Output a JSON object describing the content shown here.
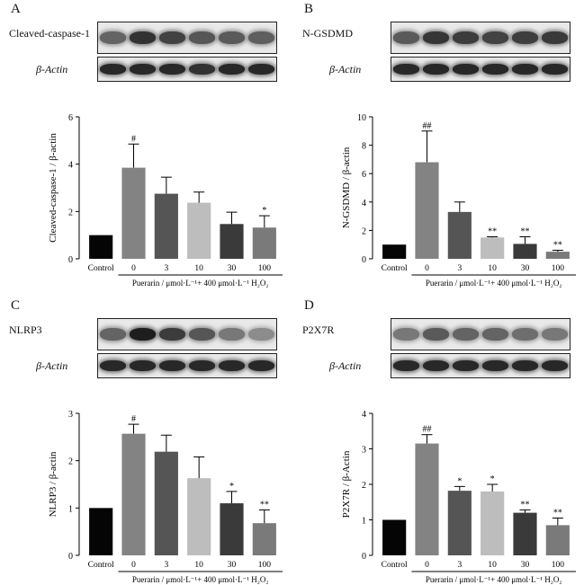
{
  "categories": [
    "Control",
    "0",
    "3",
    "10",
    "30",
    "100"
  ],
  "bracket_label": "Puerarin / μmol·L⁻¹+ 400 μmol·L⁻¹ H₂O₂",
  "actin_label": "β-Actin",
  "colors": {
    "bars": [
      "#050505",
      "#838383",
      "#555555",
      "#bdbdbd",
      "#3a3a3a",
      "#7a7a7a"
    ]
  },
  "blots": [
    {
      "main_intensity": [
        0.55,
        0.8,
        0.72,
        0.62,
        0.6,
        0.58
      ],
      "actin_intensity": [
        0.85,
        0.85,
        0.85,
        0.8,
        0.85,
        0.85
      ]
    },
    {
      "main_intensity": [
        0.6,
        0.78,
        0.75,
        0.72,
        0.74,
        0.76
      ],
      "actin_intensity": [
        0.85,
        0.85,
        0.85,
        0.85,
        0.85,
        0.85
      ]
    },
    {
      "main_intensity": [
        0.55,
        0.9,
        0.75,
        0.62,
        0.45,
        0.35
      ],
      "actin_intensity": [
        0.85,
        0.85,
        0.85,
        0.85,
        0.85,
        0.85
      ]
    },
    {
      "main_intensity": [
        0.45,
        0.6,
        0.55,
        0.55,
        0.5,
        0.45
      ],
      "actin_intensity": [
        0.85,
        0.85,
        0.85,
        0.85,
        0.85,
        0.85
      ]
    }
  ],
  "chart_data": [
    {
      "type": "bar",
      "panel_label": "A",
      "blot_label": "Cleaved-caspase-1",
      "ylabel": "Cleaved-caspase-1 / β-actin",
      "categories": [
        "Control",
        "0",
        "3",
        "10",
        "30",
        "100"
      ],
      "values": [
        1.0,
        3.85,
        2.75,
        2.37,
        1.47,
        1.32
      ],
      "errors": [
        0,
        1.0,
        0.7,
        0.45,
        0.5,
        0.5
      ],
      "significance": [
        "",
        "#",
        "",
        "",
        "",
        "*"
      ],
      "ylim": [
        0,
        6
      ],
      "yticks": [
        0,
        2,
        4,
        6
      ],
      "ytick_labels": [
        "0",
        "2",
        "4",
        "6"
      ]
    },
    {
      "type": "bar",
      "panel_label": "B",
      "blot_label": "N-GSDMD",
      "ylabel": "N-GSDMD / β-actin",
      "categories": [
        "Control",
        "0",
        "3",
        "10",
        "30",
        "100"
      ],
      "values": [
        1.0,
        6.8,
        3.3,
        1.5,
        1.05,
        0.5
      ],
      "errors": [
        0,
        2.2,
        0.7,
        0.05,
        0.5,
        0.1
      ],
      "significance": [
        "",
        "##",
        "",
        "**",
        "**",
        "**"
      ],
      "ylim": [
        0,
        10
      ],
      "yticks": [
        0,
        2,
        4,
        6,
        8,
        10
      ],
      "ytick_labels": [
        "0",
        "2",
        "4",
        "6",
        "8",
        "10"
      ]
    },
    {
      "type": "bar",
      "panel_label": "C",
      "blot_label": "NLRP3",
      "ylabel": "NLRP3 / β-actin",
      "categories": [
        "Control",
        "0",
        "3",
        "10",
        "30",
        "100"
      ],
      "values": [
        1.0,
        2.57,
        2.19,
        1.63,
        1.1,
        0.68
      ],
      "errors": [
        0,
        0.2,
        0.35,
        0.45,
        0.25,
        0.28
      ],
      "significance": [
        "",
        "#",
        "",
        "",
        "*",
        "**"
      ],
      "ylim": [
        0,
        3
      ],
      "yticks": [
        0,
        1,
        2,
        3
      ],
      "ytick_labels": [
        "0",
        "1",
        "2",
        "3"
      ]
    },
    {
      "type": "bar",
      "panel_label": "D",
      "blot_label": "P2X7R",
      "ylabel": "P2X7R / β-Actin",
      "categories": [
        "Control",
        "0",
        "3",
        "10",
        "30",
        "100"
      ],
      "values": [
        1.0,
        3.15,
        1.82,
        1.8,
        1.2,
        0.85
      ],
      "errors": [
        0,
        0.25,
        0.12,
        0.2,
        0.08,
        0.2
      ],
      "significance": [
        "",
        "##",
        "*",
        "*",
        "**",
        "**"
      ],
      "ylim": [
        0,
        4
      ],
      "yticks": [
        0,
        1,
        2,
        3,
        4
      ],
      "ytick_labels": [
        "0",
        "1",
        "2",
        "3",
        "4"
      ]
    }
  ]
}
